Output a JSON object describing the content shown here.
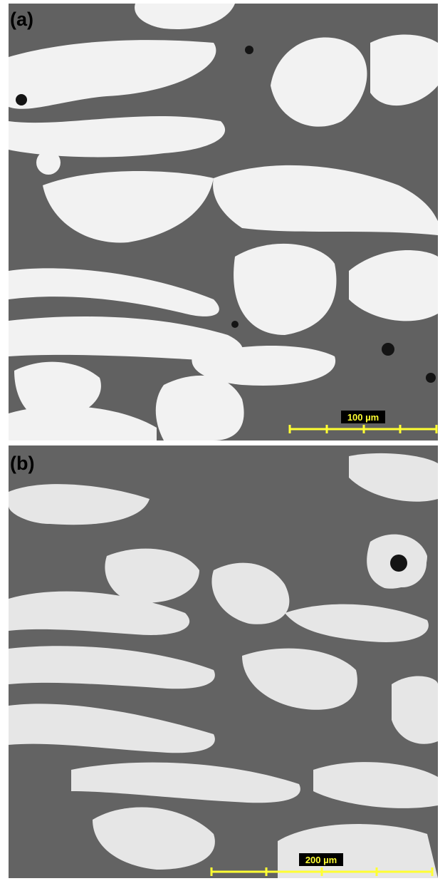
{
  "panels": [
    {
      "label": "(a)",
      "scale_bar": "100 µm"
    },
    {
      "label": "(b)",
      "scale_bar": "200 µm"
    }
  ]
}
